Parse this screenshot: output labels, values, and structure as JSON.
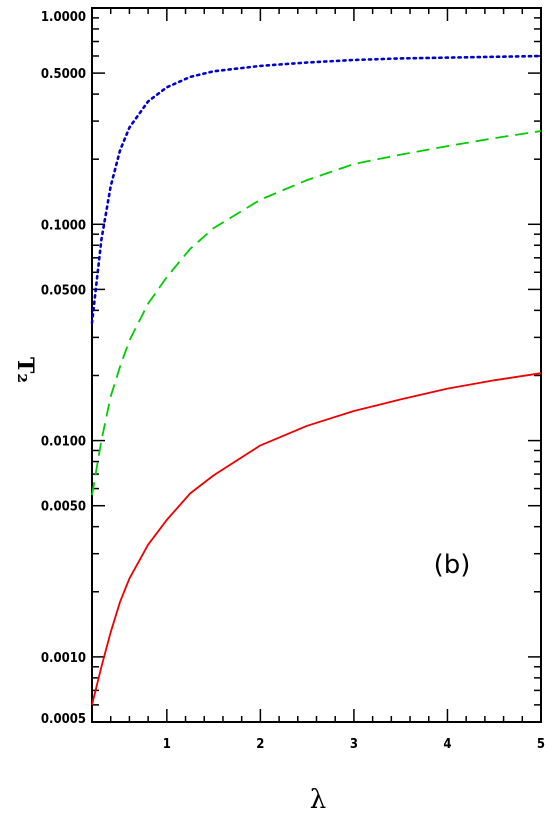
{
  "chart_data": {
    "type": "line",
    "title": "",
    "xlabel": "λ",
    "ylabel": "T₂",
    "annotation": "(b)",
    "xlim": [
      0.2,
      5
    ],
    "ylim": [
      0.0005,
      1.0
    ],
    "yscale": "log",
    "x_ticks": [
      "1",
      "2",
      "3",
      "4",
      "5"
    ],
    "y_ticks": [
      "1.0000",
      "0.5000",
      "0.1000",
      "0.0500",
      "0.0100",
      "0.0050",
      "0.0010",
      "0.0005"
    ],
    "grid": false,
    "x": [
      0.2,
      0.3,
      0.4,
      0.5,
      0.6,
      0.8,
      1.0,
      1.25,
      1.5,
      2.0,
      2.5,
      3.0,
      3.5,
      4.0,
      4.5,
      5.0
    ],
    "series": [
      {
        "color": "#0000cc",
        "style": "dotted",
        "values": [
          0.035,
          0.085,
          0.15,
          0.22,
          0.28,
          0.37,
          0.43,
          0.48,
          0.51,
          0.54,
          0.56,
          0.575,
          0.585,
          0.59,
          0.595,
          0.6
        ]
      },
      {
        "color": "#00cc00",
        "style": "dashed",
        "values": [
          0.0056,
          0.01,
          0.016,
          0.022,
          0.029,
          0.043,
          0.057,
          0.077,
          0.096,
          0.13,
          0.16,
          0.19,
          0.21,
          0.23,
          0.25,
          0.27
        ]
      },
      {
        "color": "#ee0000",
        "style": "solid",
        "values": [
          0.0006,
          0.0009,
          0.0013,
          0.0018,
          0.0023,
          0.0033,
          0.0043,
          0.0057,
          0.0069,
          0.0095,
          0.0117,
          0.0137,
          0.0155,
          0.0174,
          0.019,
          0.0205
        ]
      }
    ]
  }
}
